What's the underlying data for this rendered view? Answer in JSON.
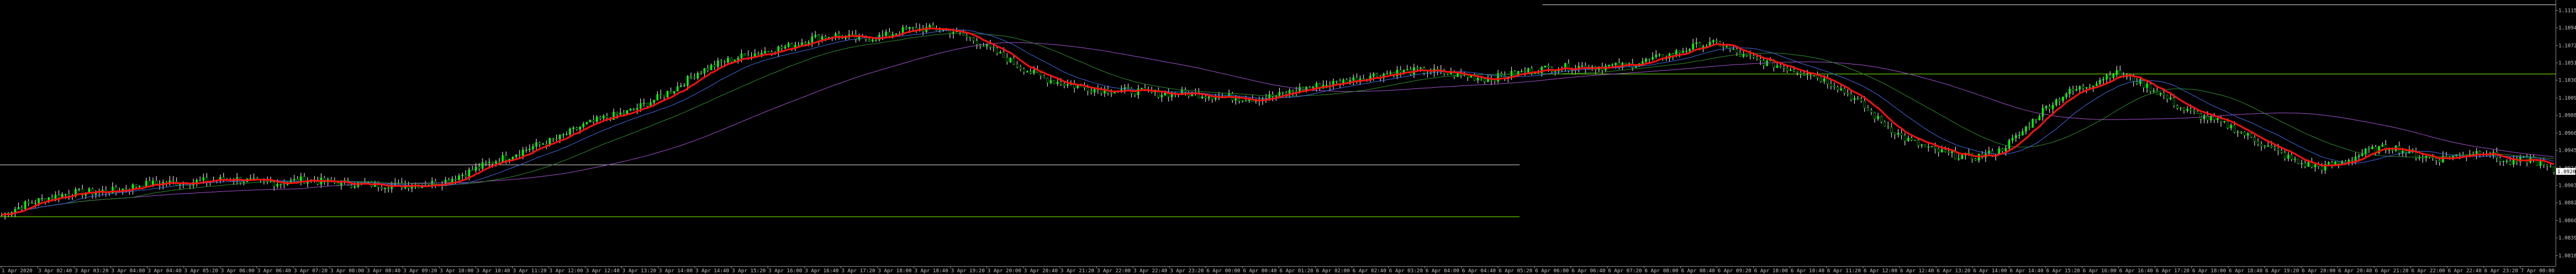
{
  "chart_data": {
    "type": "line",
    "background": "#000000",
    "grid": false,
    "price_axis": {
      "labels": [
        "1.11150",
        "1.10940",
        "1.10725",
        "1.10515",
        "1.10305",
        "1.10090",
        "1.09880",
        "1.09665",
        "1.09455",
        "1.09240",
        "1.09030",
        "1.08820",
        "1.08605",
        "1.08395",
        "1.08180"
      ],
      "ylim": [
        1.0808,
        1.1125
      ]
    },
    "time_axis": {
      "labels": [
        "1 Apr 2020",
        "3 Apr 02:40",
        "3 Apr 03:20",
        "3 Apr 04:00",
        "3 Apr 04:40",
        "3 Apr 05:20",
        "3 Apr 06:00",
        "3 Apr 06:40",
        "3 Apr 07:20",
        "3 Apr 08:00",
        "3 Apr 08:40",
        "3 Apr 09:20",
        "3 Apr 10:00",
        "3 Apr 10:40",
        "3 Apr 11:20",
        "3 Apr 12:00",
        "3 Apr 12:40",
        "3 Apr 13:20",
        "3 Apr 14:00",
        "3 Apr 14:40",
        "3 Apr 15:20",
        "3 Apr 16:00",
        "3 Apr 16:40",
        "3 Apr 17:20",
        "3 Apr 18:00",
        "3 Apr 18:40",
        "3 Apr 19:20",
        "3 Apr 20:00",
        "3 Apr 20:40",
        "3 Apr 21:20",
        "3 Apr 22:00",
        "3 Apr 22:40",
        "3 Apr 23:20",
        "6 Apr 00:00",
        "6 Apr 00:40",
        "6 Apr 01:20",
        "6 Apr 02:00",
        "6 Apr 02:40",
        "6 Apr 03:20",
        "6 Apr 04:00",
        "6 Apr 04:40",
        "6 Apr 05:20",
        "6 Apr 06:00",
        "6 Apr 06:40",
        "6 Apr 07:20",
        "6 Apr 08:00",
        "6 Apr 08:40",
        "6 Apr 09:20",
        "6 Apr 10:00",
        "6 Apr 10:40",
        "6 Apr 11:20",
        "6 Apr 12:00",
        "6 Apr 12:40",
        "6 Apr 13:20",
        "6 Apr 14:00",
        "6 Apr 14:40",
        "6 Apr 15:20",
        "6 Apr 16:00",
        "6 Apr 16:40",
        "6 Apr 17:20",
        "6 Apr 18:00",
        "6 Apr 18:40",
        "6 Apr 19:20",
        "6 Apr 20:00",
        "6 Apr 20:40",
        "6 Apr 21:20",
        "6 Apr 22:00",
        "6 Apr 22:40",
        "6 Apr 23:20",
        "7 Apr 00:00"
      ]
    },
    "price_series": [
      1.0867,
      1.088,
      1.0888,
      1.0894,
      1.0895,
      1.0897,
      1.0904,
      1.0906,
      1.0907,
      1.0909,
      1.0911,
      1.0907,
      1.0906,
      1.091,
      1.0907,
      1.0905,
      1.0904,
      1.0903,
      1.0904,
      1.0907,
      1.0918,
      1.093,
      1.094,
      1.0951,
      1.096,
      1.0975,
      1.0985,
      1.0992,
      1.1005,
      1.102,
      1.104,
      1.1052,
      1.106,
      1.1066,
      1.1072,
      1.1082,
      1.1085,
      1.108,
      1.1084,
      1.1092,
      1.1093,
      1.109,
      1.1078,
      1.1062,
      1.1045,
      1.1032,
      1.1025,
      1.102,
      1.1018,
      1.1017,
      1.1014,
      1.1015,
      1.1012,
      1.101,
      1.1008,
      1.1012,
      1.102,
      1.1025,
      1.103,
      1.1036,
      1.104,
      1.1042,
      1.104,
      1.1036,
      1.1032,
      1.1037,
      1.1043,
      1.1046,
      1.1047,
      1.1047,
      1.1048,
      1.1055,
      1.1062,
      1.1072,
      1.1075,
      1.106,
      1.1052,
      1.1045,
      1.1038,
      1.1025,
      1.1005,
      1.098,
      1.096,
      1.0948,
      1.094,
      1.0937,
      1.0943,
      1.0965,
      1.0995,
      1.1015,
      1.1025,
      1.104,
      1.103,
      1.1015,
      1.0995,
      1.0985,
      1.0975,
      1.096,
      1.0945,
      1.093,
      1.0925,
      1.0932,
      1.0945,
      1.095,
      1.094,
      1.0935,
      1.094,
      1.0945,
      1.093,
      1.0935,
      1.092
    ],
    "series": [
      {
        "name": "",
        "color": "#ff1010",
        "width": 3,
        "period": 8
      },
      {
        "name": "",
        "color": "#4169e1",
        "width": 1,
        "period": 20
      },
      {
        "name": "",
        "color": "#2e8b2e",
        "width": 1,
        "period": 40
      },
      {
        "name": "",
        "color": "#a050c8",
        "width": 1,
        "period": 90
      }
    ],
    "candle_color": "#00ff00",
    "candle_wick_color": "#ffffff",
    "levels": [
      {
        "price": 1.1122,
        "color": "#dcdcdc",
        "from_bar": 67,
        "to_bar": 1000
      },
      {
        "price": 1.1038,
        "color": "#7cfc00",
        "from_bar": 67,
        "to_bar": 1000
      },
      {
        "price": 1.0928,
        "color": "#dcdcdc",
        "from_bar": 0,
        "to_bar": 66
      },
      {
        "price": 1.0865,
        "color": "#7cfc00",
        "from_bar": 0,
        "to_bar": 66
      }
    ],
    "current_price": 1.092
  }
}
